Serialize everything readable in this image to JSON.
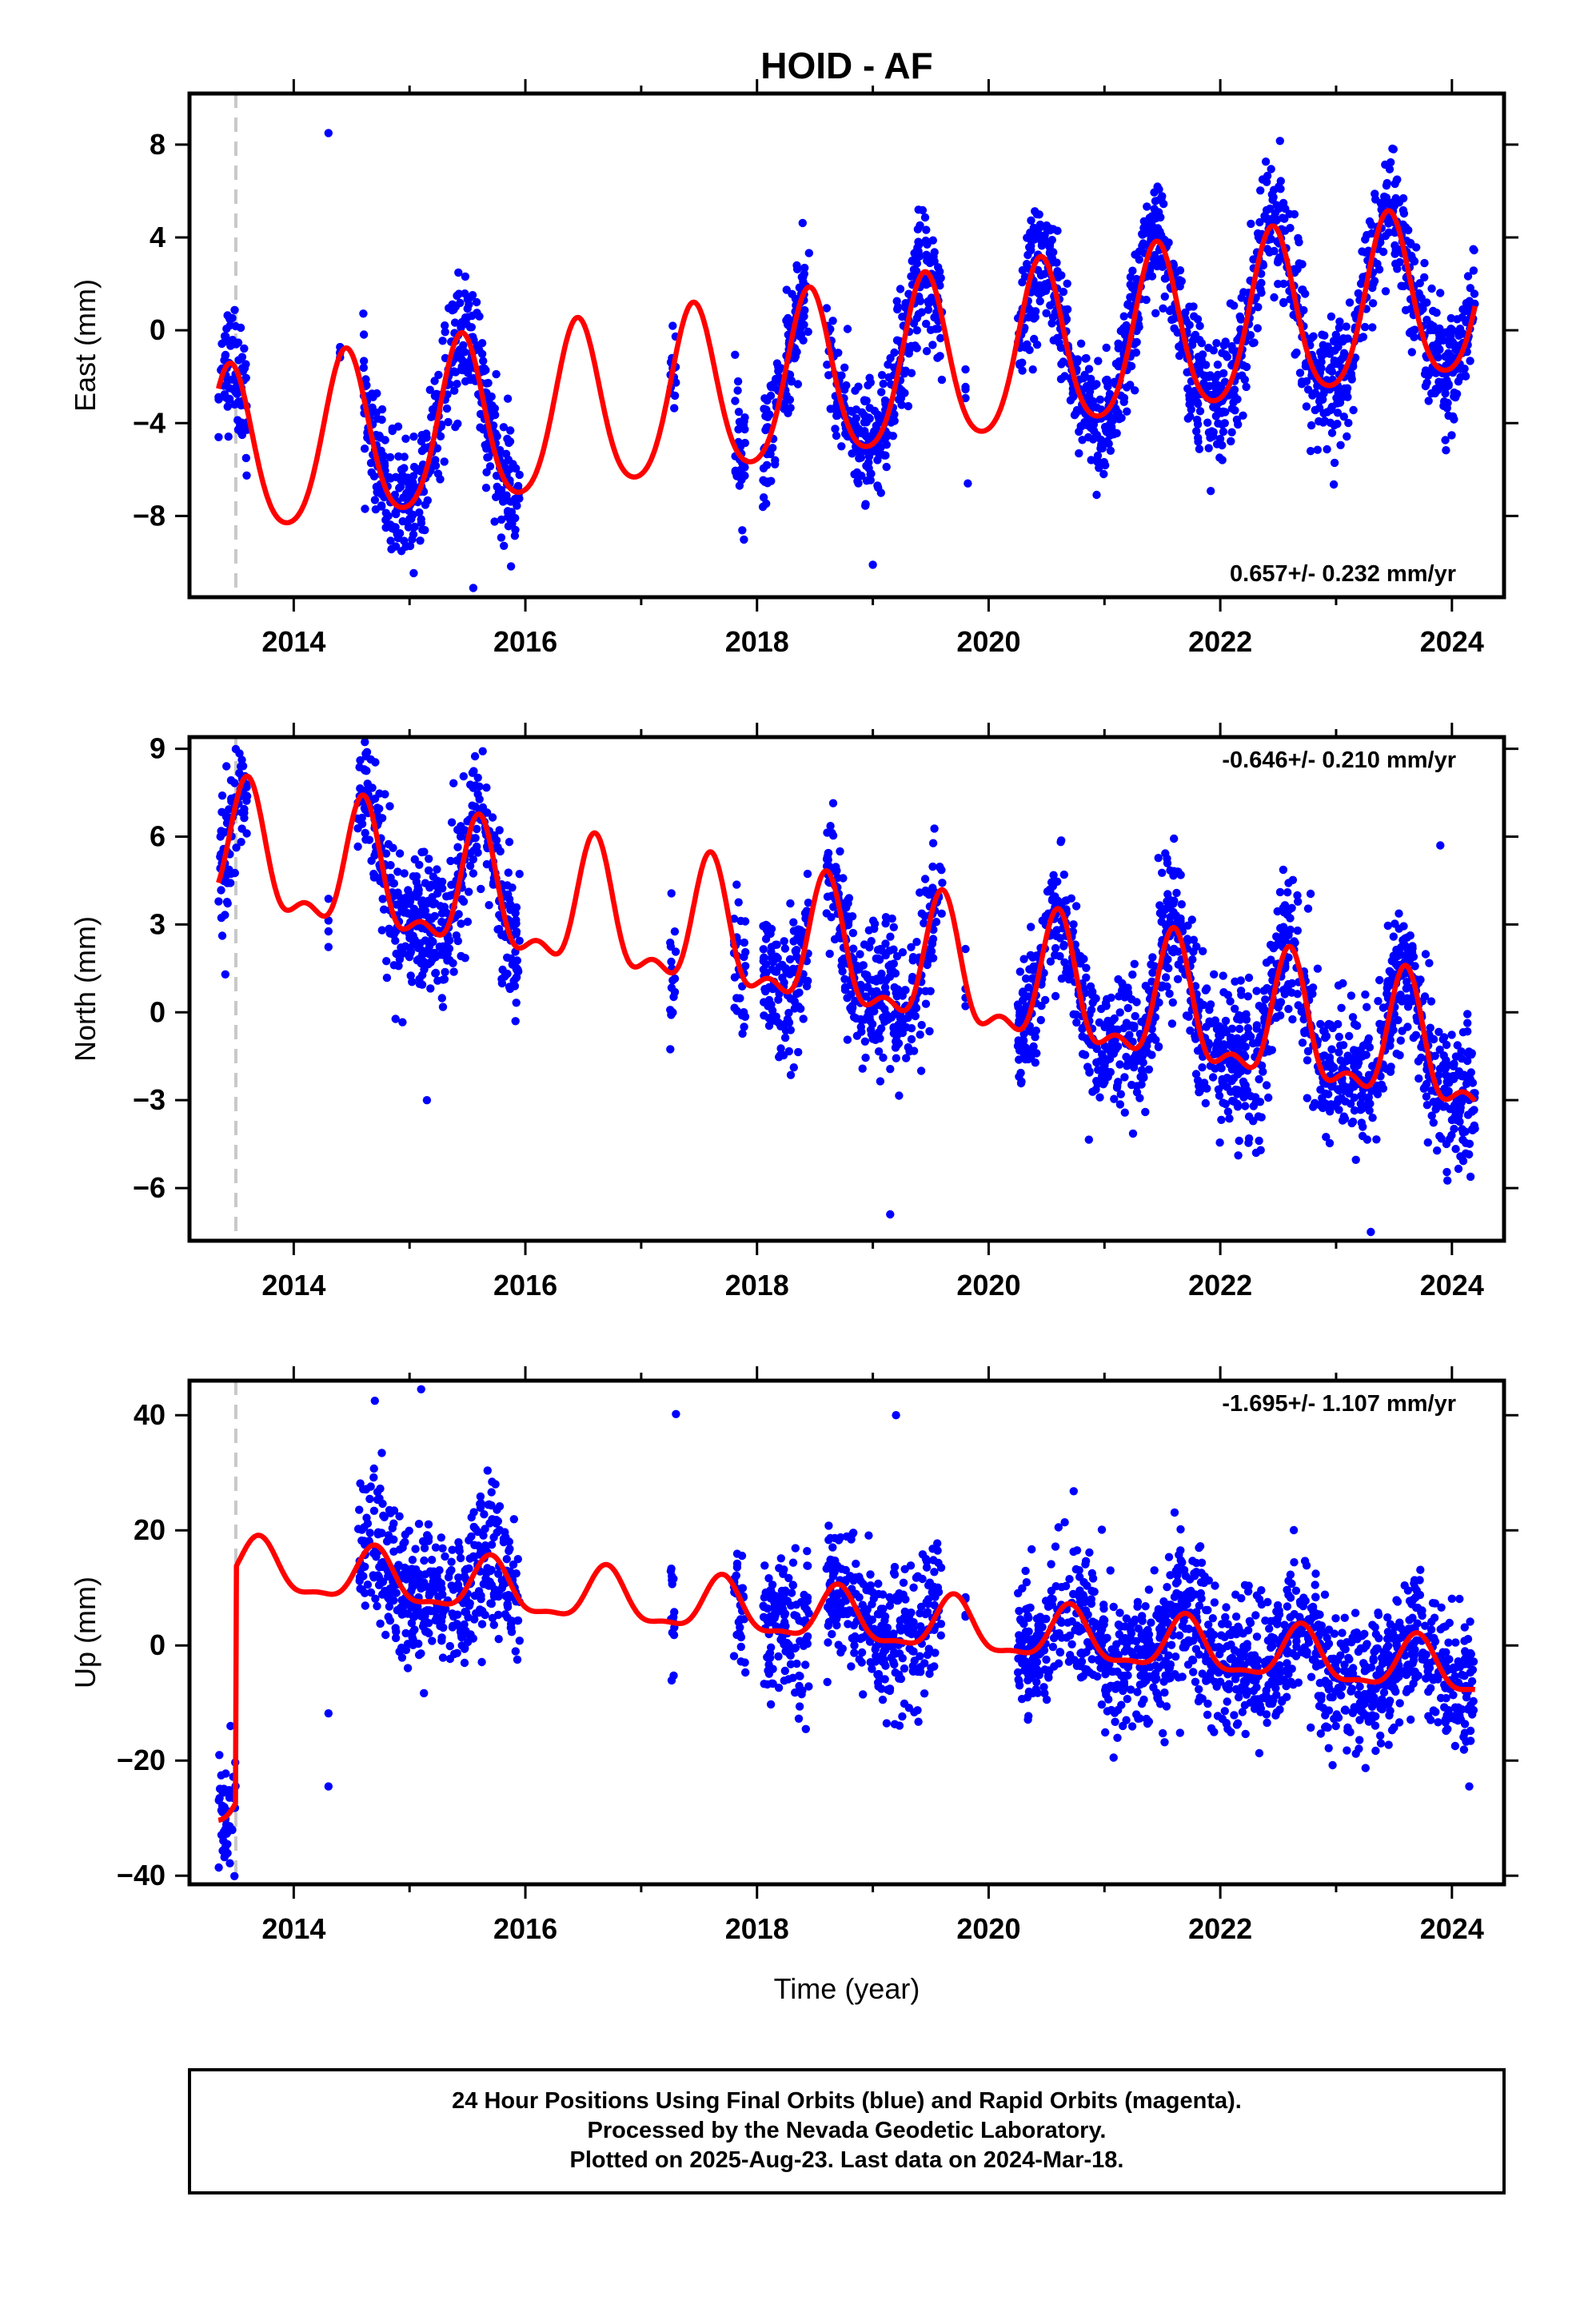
{
  "title": "HOID - AF",
  "xlabel": "Time (year)",
  "footer": {
    "line1": "24 Hour Positions Using Final Orbits (blue) and Rapid Orbits (magenta).",
    "line2": "Processed by the Nevada Geodetic Laboratory.",
    "line3": "Plotted on 2025-Aug-23. Last data on 2024-Mar-18."
  },
  "colors": {
    "points": "#0000ff",
    "model": "#ff0000",
    "offset_line": "#c8c8c8",
    "frame": "#000000"
  },
  "chart_data": [
    {
      "type": "scatter",
      "component": "east",
      "ylabel": "East (mm)",
      "rate_label": "0.657+/- 0.232 mm/yr",
      "xlim": [
        2013.1,
        2024.45
      ],
      "ylim": [
        -11.5,
        10.2
      ],
      "x_ticks": [
        2014,
        2016,
        2018,
        2020,
        2022,
        2024
      ],
      "y_ticks": [
        -8,
        -4,
        0,
        4,
        8
      ],
      "y_tick_labels": [
        "−8",
        "−4",
        "0",
        "4",
        "8"
      ],
      "offset_epoch": 2013.5,
      "model": {
        "rate": 0.657,
        "annual_amp": 3.6,
        "annual_phase_peak": 2013.45,
        "semiannual_amp": 0.5,
        "base": -2.2,
        "ref_epoch": 2018.5,
        "start": 2013.35,
        "end": 2024.2
      },
      "data_segments": [
        [
          2013.35,
          2013.6
        ],
        [
          2014.4,
          2014.4
        ],
        [
          2014.6,
          2015.95
        ],
        [
          2017.25,
          2017.3
        ],
        [
          2017.8,
          2017.9
        ],
        [
          2018.05,
          2018.45
        ],
        [
          2018.6,
          2019.6
        ],
        [
          2019.8,
          2019.8
        ],
        [
          2020.25,
          2024.2
        ]
      ],
      "scatter_sigma": 1.3,
      "isolated_points": [
        [
          2014.3,
          8.5
        ],
        [
          2015.55,
          -11.1
        ],
        [
          2019.0,
          -10.1
        ],
        [
          2019.82,
          -6.6
        ]
      ]
    },
    {
      "type": "scatter",
      "component": "north",
      "ylabel": "North (mm)",
      "rate_label": "-0.646+/- 0.210 mm/yr",
      "xlim": [
        2013.1,
        2024.45
      ],
      "ylim": [
        -7.8,
        9.4
      ],
      "x_ticks": [
        2014,
        2016,
        2018,
        2020,
        2022,
        2024
      ],
      "y_ticks": [
        -6,
        -3,
        0,
        3,
        6,
        9
      ],
      "y_tick_labels": [
        "−6",
        "−3",
        "0",
        "3",
        "6",
        "9"
      ],
      "offset_epoch": 2013.5,
      "model": {
        "rate": -0.646,
        "annual_amp": 2.0,
        "annual_phase_peak": 2013.6,
        "semiannual_amp": 0.9,
        "base": 2.0,
        "ref_epoch": 2018.5,
        "start": 2013.35,
        "end": 2024.2
      },
      "data_segments": [
        [
          2013.35,
          2013.6
        ],
        [
          2014.3,
          2014.3
        ],
        [
          2014.55,
          2015.95
        ],
        [
          2017.25,
          2017.3
        ],
        [
          2017.8,
          2017.9
        ],
        [
          2018.05,
          2018.45
        ],
        [
          2018.6,
          2019.6
        ],
        [
          2019.8,
          2019.8
        ],
        [
          2020.25,
          2024.2
        ]
      ],
      "scatter_sigma": 1.2,
      "isolated_points": [
        [
          2023.9,
          5.7
        ],
        [
          2019.15,
          -6.9
        ],
        [
          2023.3,
          -7.5
        ],
        [
          2015.15,
          -3.0
        ]
      ]
    },
    {
      "type": "scatter",
      "component": "up",
      "ylabel": "Up (mm)",
      "rate_label": "-1.695+/- 1.107 mm/yr",
      "xlim": [
        2013.1,
        2024.45
      ],
      "ylim": [
        -41.5,
        46
      ],
      "x_ticks": [
        2014,
        2016,
        2018,
        2020,
        2022,
        2024
      ],
      "y_ticks": [
        -40,
        -20,
        0,
        20,
        40
      ],
      "y_tick_labels": [
        "−40",
        "−20",
        "0",
        "20",
        "40"
      ],
      "offset_epoch": 2013.5,
      "offset_size": 41,
      "model": {
        "rate": -1.695,
        "annual_amp": 4.5,
        "annual_phase_peak": 2013.7,
        "semiannual_amp": 1.5,
        "base": 5.0,
        "ref_epoch": 2018.5,
        "start": 2013.35,
        "end": 2024.2
      },
      "data_segments": [
        [
          2013.35,
          2013.5
        ],
        [
          2014.55,
          2015.95
        ],
        [
          2017.25,
          2017.3
        ],
        [
          2017.8,
          2017.9
        ],
        [
          2018.05,
          2018.45
        ],
        [
          2018.6,
          2019.6
        ],
        [
          2019.8,
          2019.8
        ],
        [
          2020.25,
          2024.2
        ]
      ],
      "scatter_sigma": 6.0,
      "isolated_points": [
        [
          2014.3,
          -11.8
        ],
        [
          2014.3,
          -24.5
        ],
        [
          2017.3,
          40.2
        ],
        [
          2019.2,
          40.0
        ],
        [
          2015.1,
          44.5
        ],
        [
          2014.7,
          42.5
        ],
        [
          2024.15,
          -24.5
        ]
      ]
    }
  ]
}
